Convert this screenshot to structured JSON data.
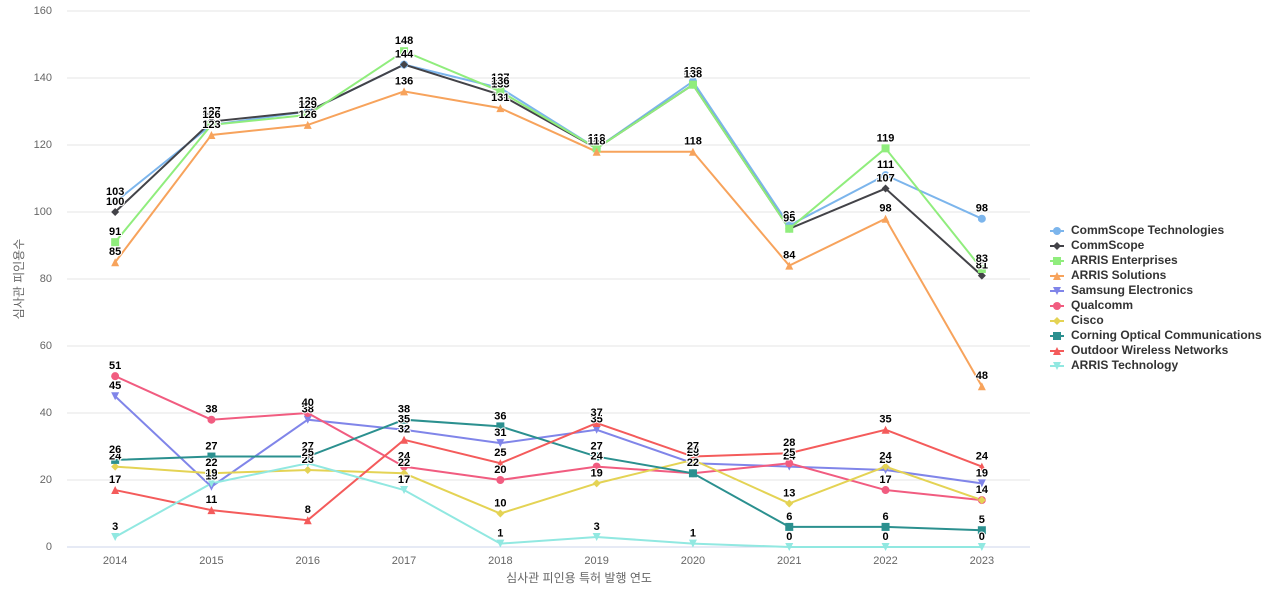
{
  "chart_data": {
    "type": "line",
    "x_label": "심사관 피인용 특허 발행 연도",
    "y_label": "심사관 피인용수",
    "categories": [
      "2014",
      "2015",
      "2016",
      "2017",
      "2018",
      "2019",
      "2020",
      "2021",
      "2022",
      "2023"
    ],
    "ylim": [
      0,
      160
    ],
    "yticks": [
      0,
      20,
      40,
      60,
      80,
      100,
      120,
      140,
      160
    ],
    "grid": true,
    "legend": "right",
    "series": [
      {
        "name": "CommScope Technologies",
        "color": "#7cb5ec",
        "symbol": "circle",
        "values": [
          103,
          126,
          130,
          144,
          137,
          119,
          139,
          96,
          111,
          98
        ]
      },
      {
        "name": "CommScope",
        "color": "#434348",
        "symbol": "diamond",
        "values": [
          100,
          127,
          130,
          144,
          135,
          119,
          138,
          95,
          107,
          81
        ]
      },
      {
        "name": "ARRIS Enterprises",
        "color": "#90ed7d",
        "symbol": "square",
        "values": [
          91,
          126,
          129,
          148,
          136,
          119,
          138,
          95,
          119,
          83
        ]
      },
      {
        "name": "ARRIS Solutions",
        "color": "#f7a35c",
        "symbol": "triangle",
        "values": [
          85,
          123,
          126,
          136,
          131,
          118,
          118,
          84,
          98,
          48
        ]
      },
      {
        "name": "Samsung Electronics",
        "color": "#8085e9",
        "symbol": "triangle-down",
        "values": [
          45,
          18,
          38,
          35,
          31,
          35,
          25,
          24,
          23,
          19
        ]
      },
      {
        "name": "Qualcomm",
        "color": "#f15c80",
        "symbol": "circle",
        "values": [
          51,
          38,
          40,
          24,
          20,
          24,
          22,
          25,
          17,
          14
        ]
      },
      {
        "name": "Cisco",
        "color": "#e4d354",
        "symbol": "diamond",
        "values": [
          24,
          22,
          23,
          22,
          10,
          19,
          26,
          13,
          24,
          14
        ]
      },
      {
        "name": "Corning Optical Communications",
        "color": "#2b908f",
        "symbol": "square",
        "values": [
          26,
          27,
          27,
          38,
          36,
          27,
          22,
          6,
          6,
          5
        ]
      },
      {
        "name": "Outdoor Wireless Networks",
        "color": "#f45b5b",
        "symbol": "triangle",
        "values": [
          17,
          11,
          8,
          32,
          25,
          37,
          27,
          28,
          35,
          24
        ]
      },
      {
        "name": "ARRIS Technology",
        "color": "#91e8e1",
        "symbol": "triangle-down",
        "values": [
          3,
          19,
          25,
          17,
          1,
          3,
          1,
          0,
          0,
          0
        ]
      }
    ]
  }
}
